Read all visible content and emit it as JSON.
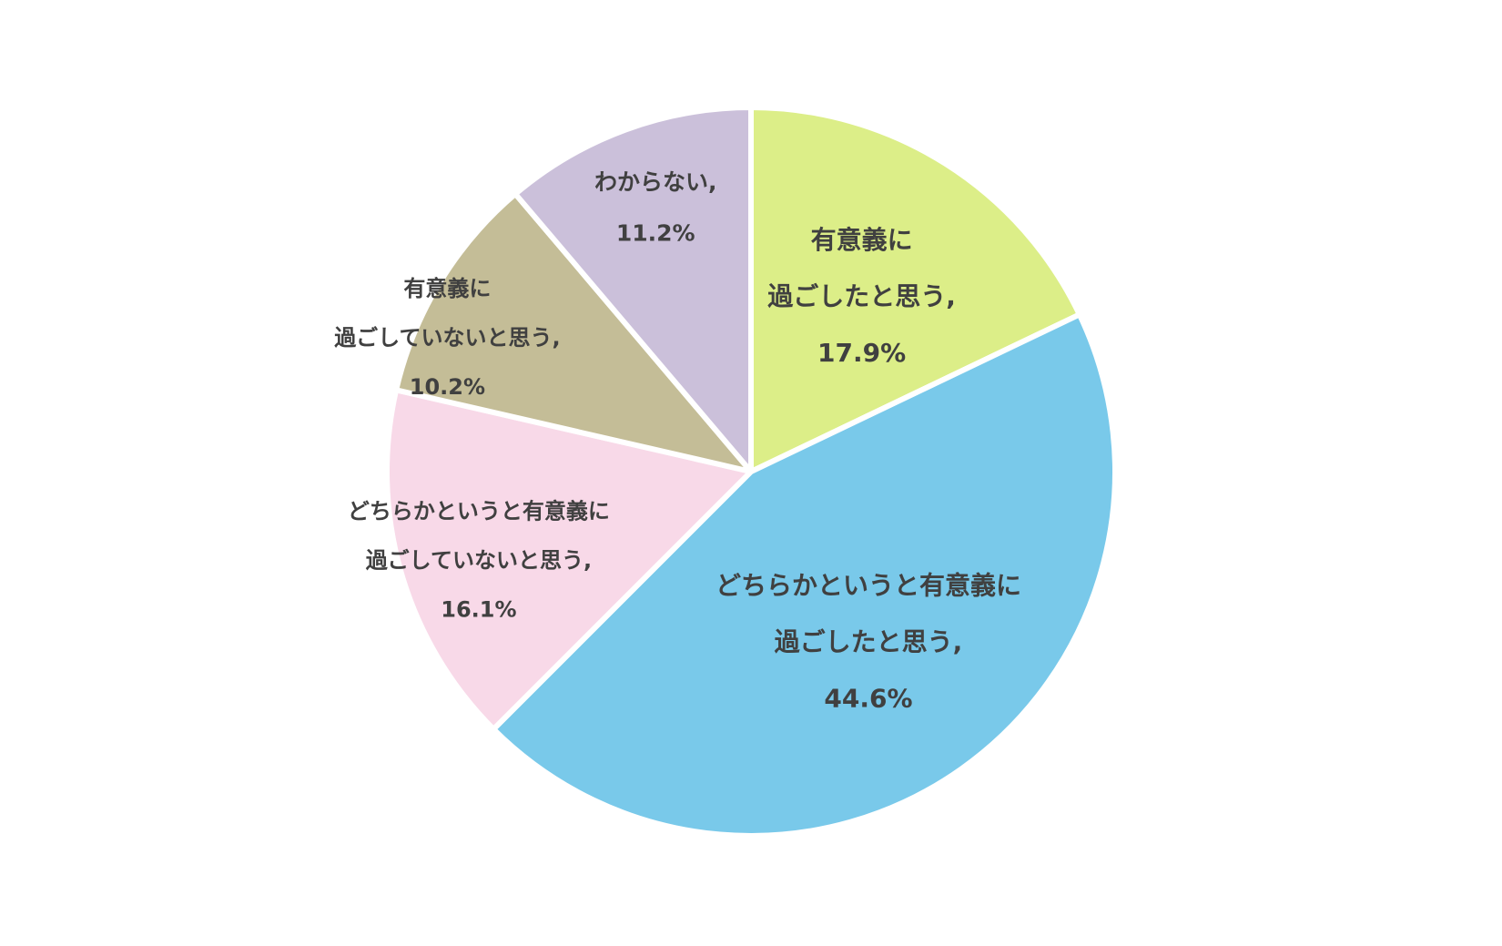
{
  "chart_data": {
    "type": "pie",
    "title": "",
    "start": "12 o'clock",
    "direction": "clockwise",
    "slices": [
      {
        "label_lines": [
          "有意義に",
          "過ごしたと思う,"
        ],
        "value": 17.9,
        "value_text": "17.9%",
        "color": "#dcee88"
      },
      {
        "label_lines": [
          "どちらかというと有意義に",
          "過ごしたと思う,"
        ],
        "value": 44.6,
        "value_text": "44.6%",
        "color": "#79c9ea"
      },
      {
        "label_lines": [
          "どちらかというと有意義に",
          "過ごしていないと思う,"
        ],
        "value": 16.1,
        "value_text": "16.1%",
        "color": "#f8d9e8"
      },
      {
        "label_lines": [
          "有意義に",
          "過ごしていないと思う,"
        ],
        "value": 10.2,
        "value_text": "10.2%",
        "color": "#c4bd97"
      },
      {
        "label_lines": [
          "わからない,"
        ],
        "value": 11.2,
        "value_text": "11.2%",
        "color": "#cbc0da"
      }
    ]
  }
}
